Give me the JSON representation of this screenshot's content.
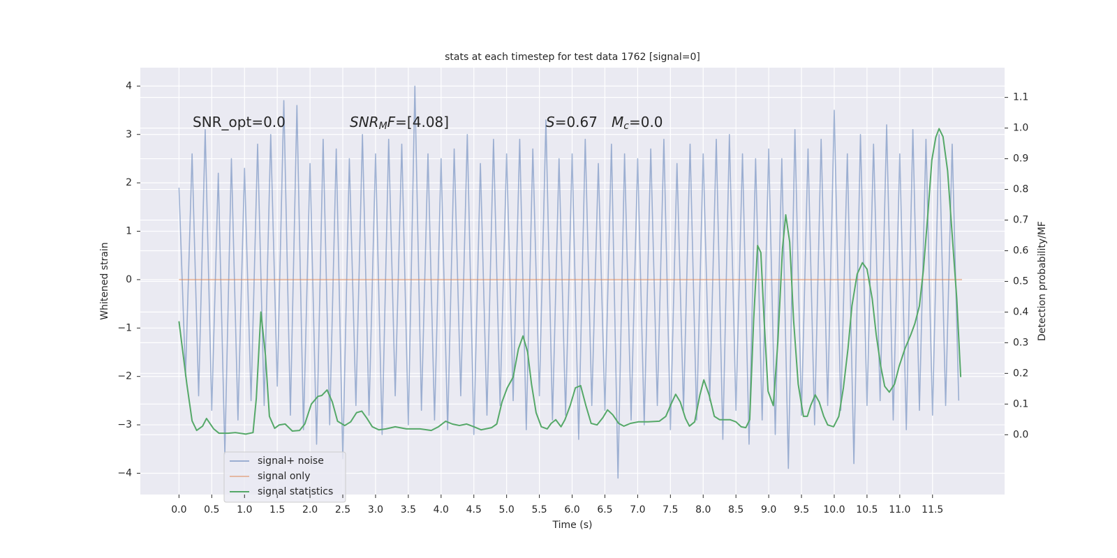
{
  "chart_data": {
    "type": "line",
    "title": "stats at each timestep for test data 1762 [signal=0]",
    "xlabel": "Time (s)",
    "ylabel": "Whitened strain",
    "y2label": "Detection probability/MF",
    "grid": true,
    "legend": "lower left",
    "xlim": [
      -0.59,
      12.6
    ],
    "ylim": [
      -4.44,
      4.38
    ],
    "y2lim": [
      -0.195,
      1.197
    ],
    "xticks": [
      {
        "value": 0,
        "label": "0.0"
      },
      {
        "value": 0.5,
        "label": "0.5"
      },
      {
        "value": 1,
        "label": "1.0"
      },
      {
        "value": 1.5,
        "label": "1.5"
      },
      {
        "value": 2,
        "label": "2.0"
      },
      {
        "value": 2.5,
        "label": "2.5"
      },
      {
        "value": 3,
        "label": "3.0"
      },
      {
        "value": 3.5,
        "label": "3.5"
      },
      {
        "value": 4,
        "label": "4.0"
      },
      {
        "value": 4.5,
        "label": "4.5"
      },
      {
        "value": 5,
        "label": "5.0"
      },
      {
        "value": 5.5,
        "label": "5.5"
      },
      {
        "value": 6,
        "label": "6.0"
      },
      {
        "value": 6.5,
        "label": "6.5"
      },
      {
        "value": 7,
        "label": "7.0"
      },
      {
        "value": 7.5,
        "label": "7.5"
      },
      {
        "value": 8,
        "label": "8.0"
      },
      {
        "value": 8.5,
        "label": "8.5"
      },
      {
        "value": 9,
        "label": "9.0"
      },
      {
        "value": 9.5,
        "label": "9.5"
      },
      {
        "value": 10,
        "label": "10.0"
      },
      {
        "value": 10.5,
        "label": "10.5"
      },
      {
        "value": 11,
        "label": "11.0"
      },
      {
        "value": 11.5,
        "label": "11.5"
      }
    ],
    "yticks": [
      {
        "value": -4,
        "label": "−4"
      },
      {
        "value": -3,
        "label": "−3"
      },
      {
        "value": -2,
        "label": "−2"
      },
      {
        "value": -1,
        "label": "−1"
      },
      0,
      1,
      2,
      3,
      4
    ],
    "y2ticks": [
      {
        "value": 0,
        "label": "0.0"
      },
      {
        "value": 0.1,
        "label": "0.1"
      },
      {
        "value": 0.2,
        "label": "0.2"
      },
      {
        "value": 0.3,
        "label": "0.3"
      },
      {
        "value": 0.4,
        "label": "0.4"
      },
      {
        "value": 0.5,
        "label": "0.5"
      },
      {
        "value": 0.6,
        "label": "0.6"
      },
      {
        "value": 0.7,
        "label": "0.7"
      },
      {
        "value": 0.8,
        "label": "0.8"
      },
      {
        "value": 0.9,
        "label": "0.9"
      },
      {
        "value": 1.0,
        "label": "1.0"
      },
      {
        "value": 1.1,
        "label": "1.1"
      }
    ],
    "annotations": [
      {
        "parts": [
          {
            "text": "SNR_opt=0.0"
          }
        ]
      },
      {
        "parts": [
          {
            "text": "SNR",
            "style": "italic"
          },
          {
            "text": "M",
            "style": "italic-sub"
          },
          {
            "text": "F",
            "style": "italic"
          },
          {
            "text": "=[4.08]"
          }
        ]
      },
      {
        "parts": [
          {
            "text": "S",
            "style": "italic"
          },
          {
            "text": "=0.67"
          }
        ]
      },
      {
        "parts": [
          {
            "text": "M",
            "style": "italic"
          },
          {
            "text": "c",
            "style": "italic-sub"
          },
          {
            "text": "=0.0"
          }
        ]
      }
    ],
    "series": [
      {
        "name": "signal+ noise",
        "color": "#4c72b0",
        "opacity": 0.5,
        "x": [
          0,
          0.1,
          0.2,
          0.3,
          0.4,
          0.5,
          0.6,
          0.7,
          0.8,
          0.9,
          1,
          1.1,
          1.2,
          1.3,
          1.4,
          1.5,
          1.6,
          1.7,
          1.8,
          1.9,
          2,
          2.1,
          2.2,
          2.3,
          2.4,
          2.5,
          2.6,
          2.7,
          2.8,
          2.9,
          3,
          3.1,
          3.2,
          3.3,
          3.4,
          3.5,
          3.6,
          3.7,
          3.8,
          3.9,
          4,
          4.1,
          4.2,
          4.3,
          4.4,
          4.5,
          4.6,
          4.7,
          4.8,
          4.9,
          5,
          5.1,
          5.2,
          5.3,
          5.4,
          5.5,
          5.6,
          5.7,
          5.8,
          5.9,
          6,
          6.1,
          6.2,
          6.3,
          6.4,
          6.5,
          6.6,
          6.7,
          6.8,
          6.9,
          7,
          7.1,
          7.2,
          7.3,
          7.4,
          7.5,
          7.6,
          7.7,
          7.8,
          7.9,
          8,
          8.1,
          8.2,
          8.3,
          8.4,
          8.5,
          8.6,
          8.7,
          8.8,
          8.9,
          9,
          9.1,
          9.2,
          9.3,
          9.4,
          9.5,
          9.6,
          9.7,
          9.8,
          9.9,
          10,
          10.1,
          10.2,
          10.3,
          10.4,
          10.5,
          10.6,
          10.7,
          10.8,
          10.9,
          11,
          11.1,
          11.2,
          11.3,
          11.4,
          11.5,
          11.6,
          11.7,
          11.8,
          11.9
        ],
        "values": [
          1.9,
          -2.0,
          2.6,
          -2.4,
          3.1,
          -2.7,
          2.2,
          -3.6,
          2.5,
          -2.9,
          2.3,
          -2.5,
          2.8,
          -2.6,
          3.0,
          -2.2,
          3.7,
          -2.8,
          3.6,
          -3.1,
          2.4,
          -3.4,
          2.9,
          -3.0,
          2.7,
          -3.7,
          2.5,
          -2.6,
          3.0,
          -2.8,
          2.6,
          -3.2,
          2.9,
          -2.4,
          2.8,
          -3.0,
          4.0,
          -2.7,
          2.6,
          -2.9,
          2.5,
          -3.1,
          2.7,
          -2.4,
          3.0,
          -3.2,
          2.4,
          -2.8,
          2.9,
          -2.6,
          2.6,
          -2.5,
          2.9,
          -3.1,
          2.7,
          -2.4,
          3.3,
          -2.9,
          2.5,
          -2.8,
          2.6,
          -3.3,
          2.9,
          -2.6,
          2.4,
          -2.7,
          2.8,
          -4.1,
          2.6,
          -2.9,
          2.5,
          -3.0,
          2.7,
          -2.6,
          2.9,
          -3.1,
          2.4,
          -2.7,
          2.8,
          -2.9,
          2.6,
          -2.5,
          2.9,
          -3.3,
          3.0,
          -2.7,
          2.6,
          -3.4,
          2.5,
          -2.9,
          2.7,
          -3.2,
          2.5,
          -3.9,
          3.1,
          -2.8,
          2.7,
          -3.0,
          2.9,
          -2.6,
          3.5,
          -2.7,
          2.6,
          -3.8,
          3.0,
          -2.6,
          2.8,
          -2.5,
          3.2,
          -2.9,
          2.6,
          -3.1,
          3.1,
          -2.7,
          2.9,
          -2.8,
          3.0,
          -2.6,
          2.8,
          -2.5
        ]
      },
      {
        "name": "signal only",
        "color": "#dd8452",
        "opacity": 0.5,
        "x": [
          0,
          11.95
        ],
        "values": [
          0,
          0
        ]
      },
      {
        "name": "signal statistics",
        "color": "#55a868",
        "opacity": 1,
        "axis": "y2",
        "x": [
          0,
          0.12,
          0.2,
          0.27,
          0.36,
          0.42,
          0.53,
          0.61,
          0.75,
          0.86,
          1.02,
          1.13,
          1.18,
          1.25,
          1.32,
          1.38,
          1.46,
          1.53,
          1.62,
          1.73,
          1.84,
          1.92,
          2.02,
          2.12,
          2.18,
          2.26,
          2.34,
          2.42,
          2.53,
          2.62,
          2.71,
          2.79,
          2.87,
          2.95,
          3.05,
          3.16,
          3.3,
          3.47,
          3.68,
          3.85,
          3.96,
          4.07,
          4.17,
          4.28,
          4.39,
          4.5,
          4.61,
          4.77,
          4.85,
          4.93,
          5.01,
          5.1,
          5.18,
          5.25,
          5.32,
          5.38,
          5.45,
          5.53,
          5.62,
          5.68,
          5.75,
          5.83,
          5.89,
          5.97,
          6.05,
          6.13,
          6.21,
          6.29,
          6.38,
          6.47,
          6.54,
          6.62,
          6.71,
          6.79,
          6.89,
          7.01,
          7.16,
          7.33,
          7.43,
          7.51,
          7.58,
          7.65,
          7.73,
          7.79,
          7.87,
          7.95,
          8.01,
          8.09,
          8.17,
          8.25,
          8.41,
          8.5,
          8.58,
          8.65,
          8.71,
          8.77,
          8.83,
          8.88,
          8.93,
          8.99,
          9.07,
          9.14,
          9.21,
          9.26,
          9.32,
          9.38,
          9.45,
          9.53,
          9.59,
          9.64,
          9.71,
          9.77,
          9.84,
          9.9,
          9.99,
          10.07,
          10.14,
          10.21,
          10.27,
          10.35,
          10.43,
          10.5,
          10.58,
          10.64,
          10.71,
          10.77,
          10.84,
          10.92,
          10.99,
          11.08,
          11.17,
          11.23,
          11.3,
          11.36,
          11.43,
          11.49,
          11.55,
          11.6,
          11.66,
          11.73,
          11.8,
          11.87,
          11.93
        ],
        "values": [
          0.37,
          0.165,
          0.045,
          0.014,
          0.028,
          0.053,
          0.019,
          0.005,
          0.005,
          0.007,
          0.002,
          0.007,
          0.118,
          0.4,
          0.258,
          0.06,
          0.021,
          0.032,
          0.035,
          0.012,
          0.014,
          0.035,
          0.1,
          0.125,
          0.128,
          0.146,
          0.107,
          0.044,
          0.03,
          0.042,
          0.072,
          0.077,
          0.053,
          0.026,
          0.016,
          0.019,
          0.026,
          0.019,
          0.019,
          0.014,
          0.026,
          0.044,
          0.035,
          0.03,
          0.035,
          0.026,
          0.016,
          0.023,
          0.035,
          0.107,
          0.153,
          0.188,
          0.28,
          0.322,
          0.27,
          0.165,
          0.072,
          0.026,
          0.019,
          0.037,
          0.049,
          0.026,
          0.049,
          0.095,
          0.153,
          0.16,
          0.095,
          0.037,
          0.032,
          0.056,
          0.081,
          0.065,
          0.037,
          0.028,
          0.037,
          0.042,
          0.042,
          0.044,
          0.06,
          0.1,
          0.132,
          0.107,
          0.053,
          0.028,
          0.042,
          0.13,
          0.179,
          0.13,
          0.06,
          0.049,
          0.049,
          0.042,
          0.026,
          0.023,
          0.049,
          0.373,
          0.617,
          0.594,
          0.373,
          0.142,
          0.095,
          0.304,
          0.606,
          0.717,
          0.629,
          0.373,
          0.165,
          0.06,
          0.06,
          0.095,
          0.13,
          0.107,
          0.06,
          0.032,
          0.026,
          0.06,
          0.153,
          0.281,
          0.42,
          0.524,
          0.561,
          0.54,
          0.443,
          0.327,
          0.223,
          0.158,
          0.139,
          0.165,
          0.223,
          0.281,
          0.327,
          0.362,
          0.42,
          0.536,
          0.722,
          0.896,
          0.97,
          0.998,
          0.972,
          0.861,
          0.652,
          0.443,
          0.188
        ]
      }
    ]
  }
}
